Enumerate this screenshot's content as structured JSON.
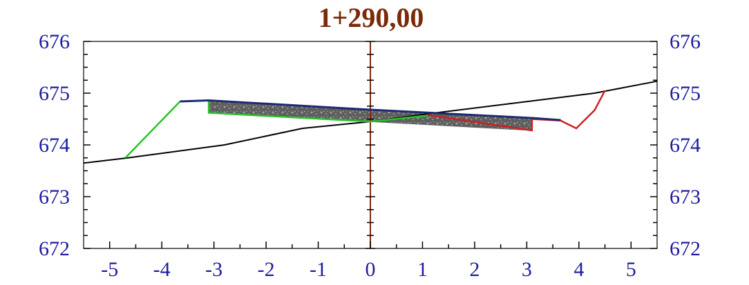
{
  "title": "1+290,00",
  "colors": {
    "title": "#7a2a08",
    "axis_text": "#1c1ca0",
    "frame": "#000000",
    "centerline": "#7a2a08",
    "ground": "#000000",
    "fill_slope": "#27c427",
    "cut_slope": "#d01f1f",
    "pavement_top": "#1c2a70",
    "pavement_fill": "#666666"
  },
  "chart_data": {
    "type": "cross-section",
    "title": "1+290,00",
    "xlim": [
      -5.5,
      5.5
    ],
    "ylim": [
      672,
      676
    ],
    "x_ticks": [
      "-5",
      "-4",
      "-3",
      "-2",
      "-1",
      "0",
      "1",
      "2",
      "3",
      "4",
      "5"
    ],
    "y_ticks_left": [
      "672",
      "673",
      "674",
      "675",
      "676"
    ],
    "y_ticks_right": [
      "672",
      "673",
      "674",
      "675",
      "676"
    ],
    "centerline_x": 0,
    "series": [
      {
        "id": "ground",
        "points": [
          [
            -5.5,
            673.65
          ],
          [
            -4.65,
            673.75
          ],
          [
            -2.8,
            674.0
          ],
          [
            -1.3,
            674.32
          ],
          [
            0,
            674.45
          ],
          [
            1.1,
            674.6
          ],
          [
            4.3,
            675.0
          ],
          [
            5.5,
            675.23
          ]
        ]
      },
      {
        "id": "fill_slope",
        "points": [
          [
            -4.7,
            673.75
          ],
          [
            -3.65,
            674.84
          ],
          [
            -3.1,
            674.86
          ],
          [
            -3.1,
            674.62
          ],
          [
            0,
            674.45
          ],
          [
            1.2,
            674.58
          ]
        ]
      },
      {
        "id": "cut_slope",
        "points": [
          [
            1.1,
            674.58
          ],
          [
            3.1,
            674.28
          ],
          [
            3.1,
            674.5
          ],
          [
            3.65,
            674.47
          ],
          [
            3.95,
            674.32
          ],
          [
            4.3,
            674.67
          ],
          [
            4.5,
            675.05
          ]
        ]
      },
      {
        "id": "pavement_top",
        "points": [
          [
            -3.65,
            674.84
          ],
          [
            -3.1,
            674.86
          ],
          [
            0,
            674.68
          ],
          [
            3.1,
            674.52
          ],
          [
            3.65,
            674.48
          ]
        ]
      },
      {
        "id": "pavement_layer",
        "points": [
          [
            -3.1,
            674.86
          ],
          [
            0,
            674.68
          ],
          [
            3.1,
            674.52
          ],
          [
            3.1,
            674.28
          ],
          [
            0,
            674.45
          ],
          [
            -3.1,
            674.62
          ]
        ]
      }
    ]
  }
}
